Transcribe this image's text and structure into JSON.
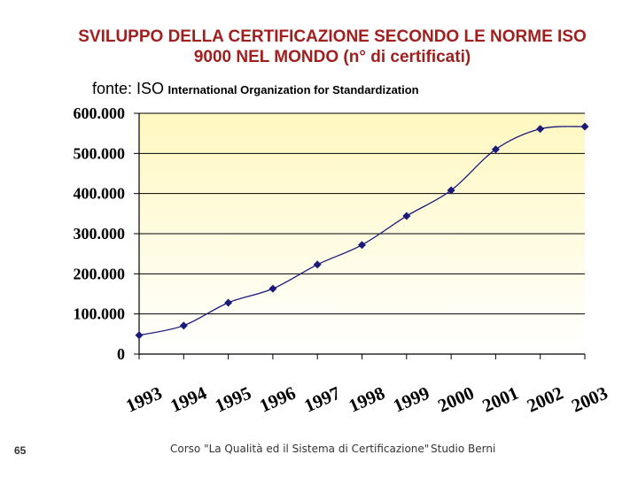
{
  "title_line1": "SVILUPPO DELLA CERTIFICAZIONE SECONDO LE NORME ISO",
  "title_line2": "9000 NEL MONDO (n° di certificati)",
  "source_prefix": "fonte: ISO",
  "source_org": "International Organization for Standardization",
  "footer": {
    "page_number": "65",
    "course": "Corso \"La Qualità ed il Sistema di Certificazione\"",
    "studio": "Studio Berni"
  },
  "colors": {
    "title": "#a02020",
    "series": "#1a1a7a",
    "plot_bg_top": "#fff8c0",
    "plot_bg_bottom": "#ffffff",
    "grid": "#000000"
  },
  "chart_data": {
    "type": "line",
    "title": "SVILUPPO DELLA CERTIFICAZIONE SECONDO LE NORME ISO 9000 NEL MONDO (n° di certificati)",
    "categories": [
      "1993",
      "1994",
      "1995",
      "1996",
      "1997",
      "1998",
      "1999",
      "2000",
      "2001",
      "2002",
      "2003"
    ],
    "values": [
      47000,
      71000,
      128000,
      163000,
      223000,
      272000,
      344000,
      408000,
      510000,
      561000,
      567000
    ],
    "ylim": [
      0,
      600000
    ],
    "yticks": [
      0,
      100000,
      200000,
      300000,
      400000,
      500000,
      600000
    ],
    "ytick_labels": [
      "0",
      "100.000",
      "200.000",
      "300.000",
      "400.000",
      "500.000",
      "600.000"
    ],
    "grid": true,
    "legend": "none",
    "xlabel": "",
    "ylabel": ""
  }
}
